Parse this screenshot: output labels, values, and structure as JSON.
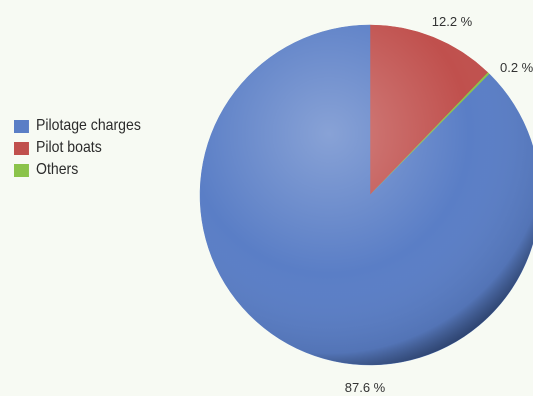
{
  "chart_data": {
    "type": "pie",
    "title": "",
    "slices": [
      {
        "label": "Pilotage charges",
        "value": 87.6,
        "display": "87.6 %",
        "color": "#5a7ec6"
      },
      {
        "label": "Pilot boats",
        "value": 12.2,
        "display": "12.2 %",
        "color": "#c0504d"
      },
      {
        "label": "Others",
        "value": 0.2,
        "display": "0.2 %",
        "color": "#8bc34a"
      }
    ],
    "legend_position": "left"
  }
}
